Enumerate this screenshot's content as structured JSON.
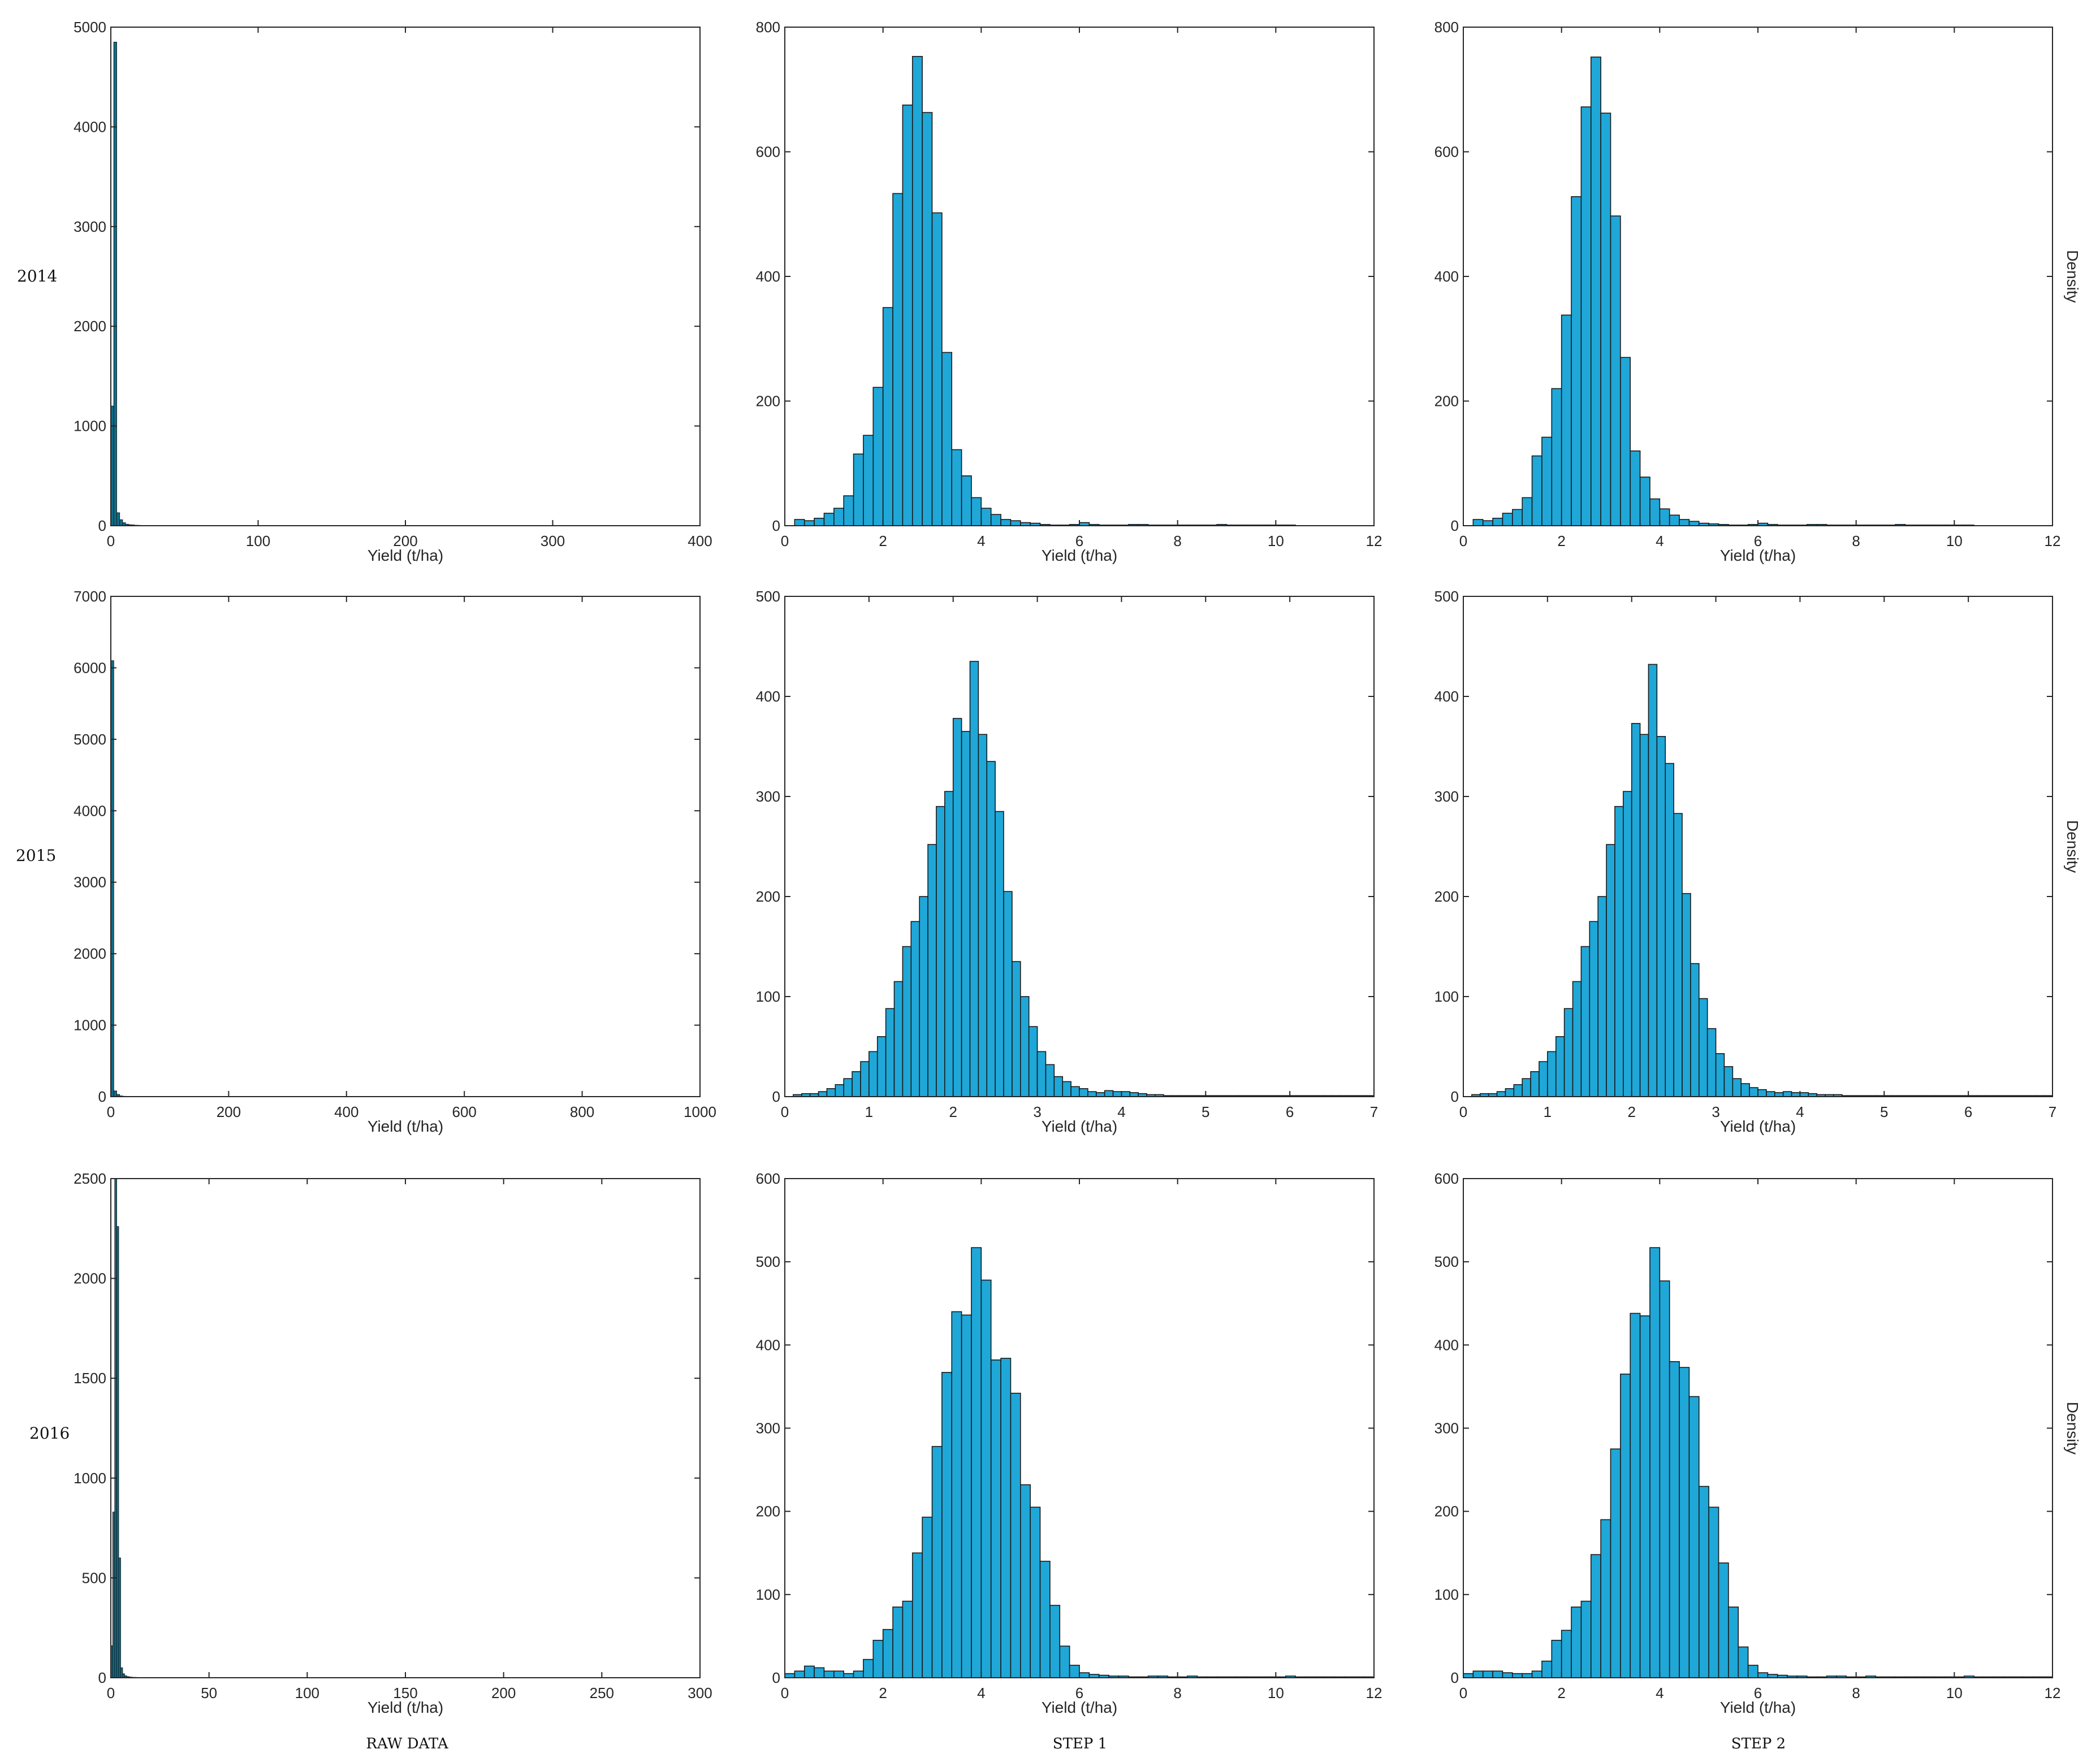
{
  "figure": {
    "row_labels": [
      "2014",
      "2015",
      "2016"
    ],
    "column_labels": [
      "RAW DATA",
      "STEP 1",
      "STEP 2"
    ],
    "bar_color": "#1FA7D8",
    "raw_bar_color": "#0D6E8A",
    "edge_color": "#1A1A1A"
  },
  "chart_data": [
    {
      "type": "bar",
      "panel": "2014-raw",
      "xlabel": "Yield (t/ha)",
      "ylabel": "",
      "xlim": [
        0,
        400
      ],
      "ylim": [
        0,
        5000
      ],
      "xticks": [
        0,
        100,
        200,
        300,
        400
      ],
      "yticks": [
        0,
        1000,
        2000,
        3000,
        4000,
        5000
      ],
      "bin_edges_start": 0,
      "bin_width": 2,
      "values": [
        1200,
        4850,
        130,
        60,
        30,
        15,
        10,
        8,
        5,
        4,
        3,
        2,
        2,
        1
      ]
    },
    {
      "type": "bar",
      "panel": "2014-step1",
      "xlabel": "Yield (t/ha)",
      "ylabel": "",
      "xlim": [
        0,
        12
      ],
      "ylim": [
        0,
        800
      ],
      "xticks": [
        0,
        2,
        4,
        6,
        8,
        10,
        12
      ],
      "yticks": [
        0,
        200,
        400,
        600,
        800
      ],
      "bin_edges_start": 0.2,
      "bin_width": 0.2,
      "values": [
        10,
        8,
        12,
        20,
        28,
        48,
        115,
        145,
        222,
        350,
        533,
        675,
        753,
        663,
        502,
        278,
        122,
        80,
        45,
        28,
        18,
        10,
        8,
        5,
        4,
        2,
        1,
        1,
        2,
        5,
        2,
        1,
        1,
        1,
        2,
        2,
        1,
        1,
        1,
        1,
        1,
        1,
        1,
        2,
        1,
        1,
        1,
        1,
        1,
        1,
        1
      ]
    },
    {
      "type": "bar",
      "panel": "2014-step2",
      "xlabel": "Yield (t/ha)",
      "ylabel": "Density",
      "xlim": [
        0,
        12
      ],
      "ylim": [
        0,
        800
      ],
      "xticks": [
        0,
        2,
        4,
        6,
        8,
        10,
        12
      ],
      "yticks": [
        0,
        200,
        400,
        600,
        800
      ],
      "bin_edges_start": 0.2,
      "bin_width": 0.2,
      "values": [
        10,
        8,
        12,
        20,
        26,
        45,
        112,
        142,
        220,
        338,
        528,
        672,
        752,
        662,
        497,
        270,
        120,
        78,
        43,
        27,
        17,
        10,
        7,
        4,
        3,
        2,
        1,
        1,
        2,
        4,
        2,
        1,
        1,
        1,
        2,
        2,
        1,
        1,
        1,
        1,
        1,
        1,
        1,
        2,
        1,
        1,
        1,
        1,
        1,
        1,
        1
      ]
    },
    {
      "type": "bar",
      "panel": "2015-raw",
      "xlabel": "Yield (t/ha)",
      "ylabel": "",
      "xlim": [
        0,
        1000
      ],
      "ylim": [
        0,
        7000
      ],
      "xticks": [
        0,
        200,
        400,
        600,
        800,
        1000
      ],
      "yticks": [
        0,
        1000,
        2000,
        3000,
        4000,
        5000,
        6000,
        7000
      ],
      "bin_edges_start": 0,
      "bin_width": 5,
      "values": [
        6100,
        80,
        30,
        10,
        5,
        3
      ]
    },
    {
      "type": "bar",
      "panel": "2015-step1",
      "xlabel": "Yield (t/ha)",
      "ylabel": "",
      "xlim": [
        0,
        7
      ],
      "ylim": [
        0,
        500
      ],
      "xticks": [
        0,
        1,
        2,
        3,
        4,
        5,
        6,
        7
      ],
      "yticks": [
        0,
        100,
        200,
        300,
        400,
        500
      ],
      "bin_edges_start": 0.1,
      "bin_width": 0.1,
      "values": [
        2,
        3,
        3,
        5,
        8,
        12,
        18,
        25,
        35,
        45,
        60,
        88,
        115,
        150,
        175,
        200,
        252,
        290,
        305,
        378,
        365,
        435,
        362,
        335,
        285,
        205,
        135,
        100,
        70,
        45,
        32,
        20,
        15,
        10,
        8,
        5,
        4,
        6,
        5,
        5,
        4,
        3,
        2,
        2,
        1,
        1,
        1,
        1,
        1,
        1,
        1,
        1,
        1,
        1,
        1,
        1,
        1,
        1,
        1,
        1,
        1,
        1,
        1,
        1,
        1,
        1,
        1,
        1,
        1
      ]
    },
    {
      "type": "bar",
      "panel": "2015-step2",
      "xlabel": "Yield (t/ha)",
      "ylabel": "Density",
      "xlim": [
        0,
        7
      ],
      "ylim": [
        0,
        500
      ],
      "xticks": [
        0,
        1,
        2,
        3,
        4,
        5,
        6,
        7
      ],
      "yticks": [
        0,
        100,
        200,
        300,
        400,
        500
      ],
      "bin_edges_start": 0.1,
      "bin_width": 0.1,
      "values": [
        2,
        3,
        3,
        5,
        8,
        12,
        18,
        25,
        35,
        45,
        60,
        88,
        115,
        150,
        175,
        200,
        252,
        290,
        305,
        373,
        362,
        432,
        360,
        333,
        283,
        203,
        133,
        98,
        68,
        43,
        30,
        18,
        13,
        9,
        7,
        5,
        4,
        5,
        4,
        4,
        3,
        2,
        2,
        2,
        1,
        1,
        1,
        1,
        1,
        1,
        1,
        1,
        1,
        1,
        1,
        1,
        1,
        1,
        1,
        1,
        1,
        1,
        1,
        1,
        1,
        1,
        1,
        1,
        1
      ]
    },
    {
      "type": "bar",
      "panel": "2016-raw",
      "xlabel": "Yield (t/ha)",
      "ylabel": "",
      "xlim": [
        0,
        300
      ],
      "ylim": [
        0,
        2500
      ],
      "xticks": [
        0,
        50,
        100,
        150,
        200,
        250,
        300
      ],
      "yticks": [
        0,
        500,
        1000,
        1500,
        2000,
        2500
      ],
      "bin_edges_start": 0,
      "bin_width": 1,
      "values": [
        160,
        830,
        2500,
        2260,
        600,
        50,
        20,
        10,
        6,
        4,
        3,
        2,
        2,
        1,
        1
      ]
    },
    {
      "type": "bar",
      "panel": "2016-step1",
      "xlabel": "Yield (t/ha)",
      "ylabel": "",
      "xlim": [
        0,
        12
      ],
      "ylim": [
        0,
        600
      ],
      "xticks": [
        0,
        2,
        4,
        6,
        8,
        10,
        12
      ],
      "yticks": [
        0,
        100,
        200,
        300,
        400,
        500,
        600
      ],
      "bin_edges_start": 0,
      "bin_width": 0.2,
      "values": [
        5,
        8,
        14,
        12,
        8,
        8,
        5,
        8,
        22,
        45,
        58,
        85,
        92,
        150,
        193,
        278,
        367,
        440,
        436,
        517,
        478,
        382,
        384,
        342,
        232,
        205,
        140,
        87,
        38,
        15,
        6,
        4,
        3,
        2,
        2,
        1,
        1,
        2,
        2,
        1,
        1,
        2,
        1,
        1,
        1,
        1,
        1,
        1,
        1,
        1,
        1,
        2,
        1,
        1,
        1,
        1,
        1,
        1,
        1,
        1
      ]
    },
    {
      "type": "bar",
      "panel": "2016-step2",
      "xlabel": "Yield (t/ha)",
      "ylabel": "Density",
      "xlim": [
        0,
        12
      ],
      "ylim": [
        0,
        600
      ],
      "xticks": [
        0,
        2,
        4,
        6,
        8,
        10,
        12
      ],
      "yticks": [
        0,
        100,
        200,
        300,
        400,
        500,
        600
      ],
      "bin_edges_start": 0,
      "bin_width": 0.2,
      "values": [
        5,
        8,
        8,
        8,
        6,
        5,
        5,
        8,
        20,
        45,
        57,
        85,
        92,
        148,
        190,
        275,
        365,
        438,
        435,
        517,
        477,
        380,
        373,
        338,
        230,
        205,
        138,
        85,
        37,
        15,
        6,
        4,
        3,
        2,
        2,
        1,
        1,
        2,
        2,
        1,
        1,
        2,
        1,
        1,
        1,
        1,
        1,
        1,
        1,
        1,
        1,
        2,
        1,
        1,
        1,
        1,
        1,
        1,
        1,
        1
      ]
    }
  ]
}
